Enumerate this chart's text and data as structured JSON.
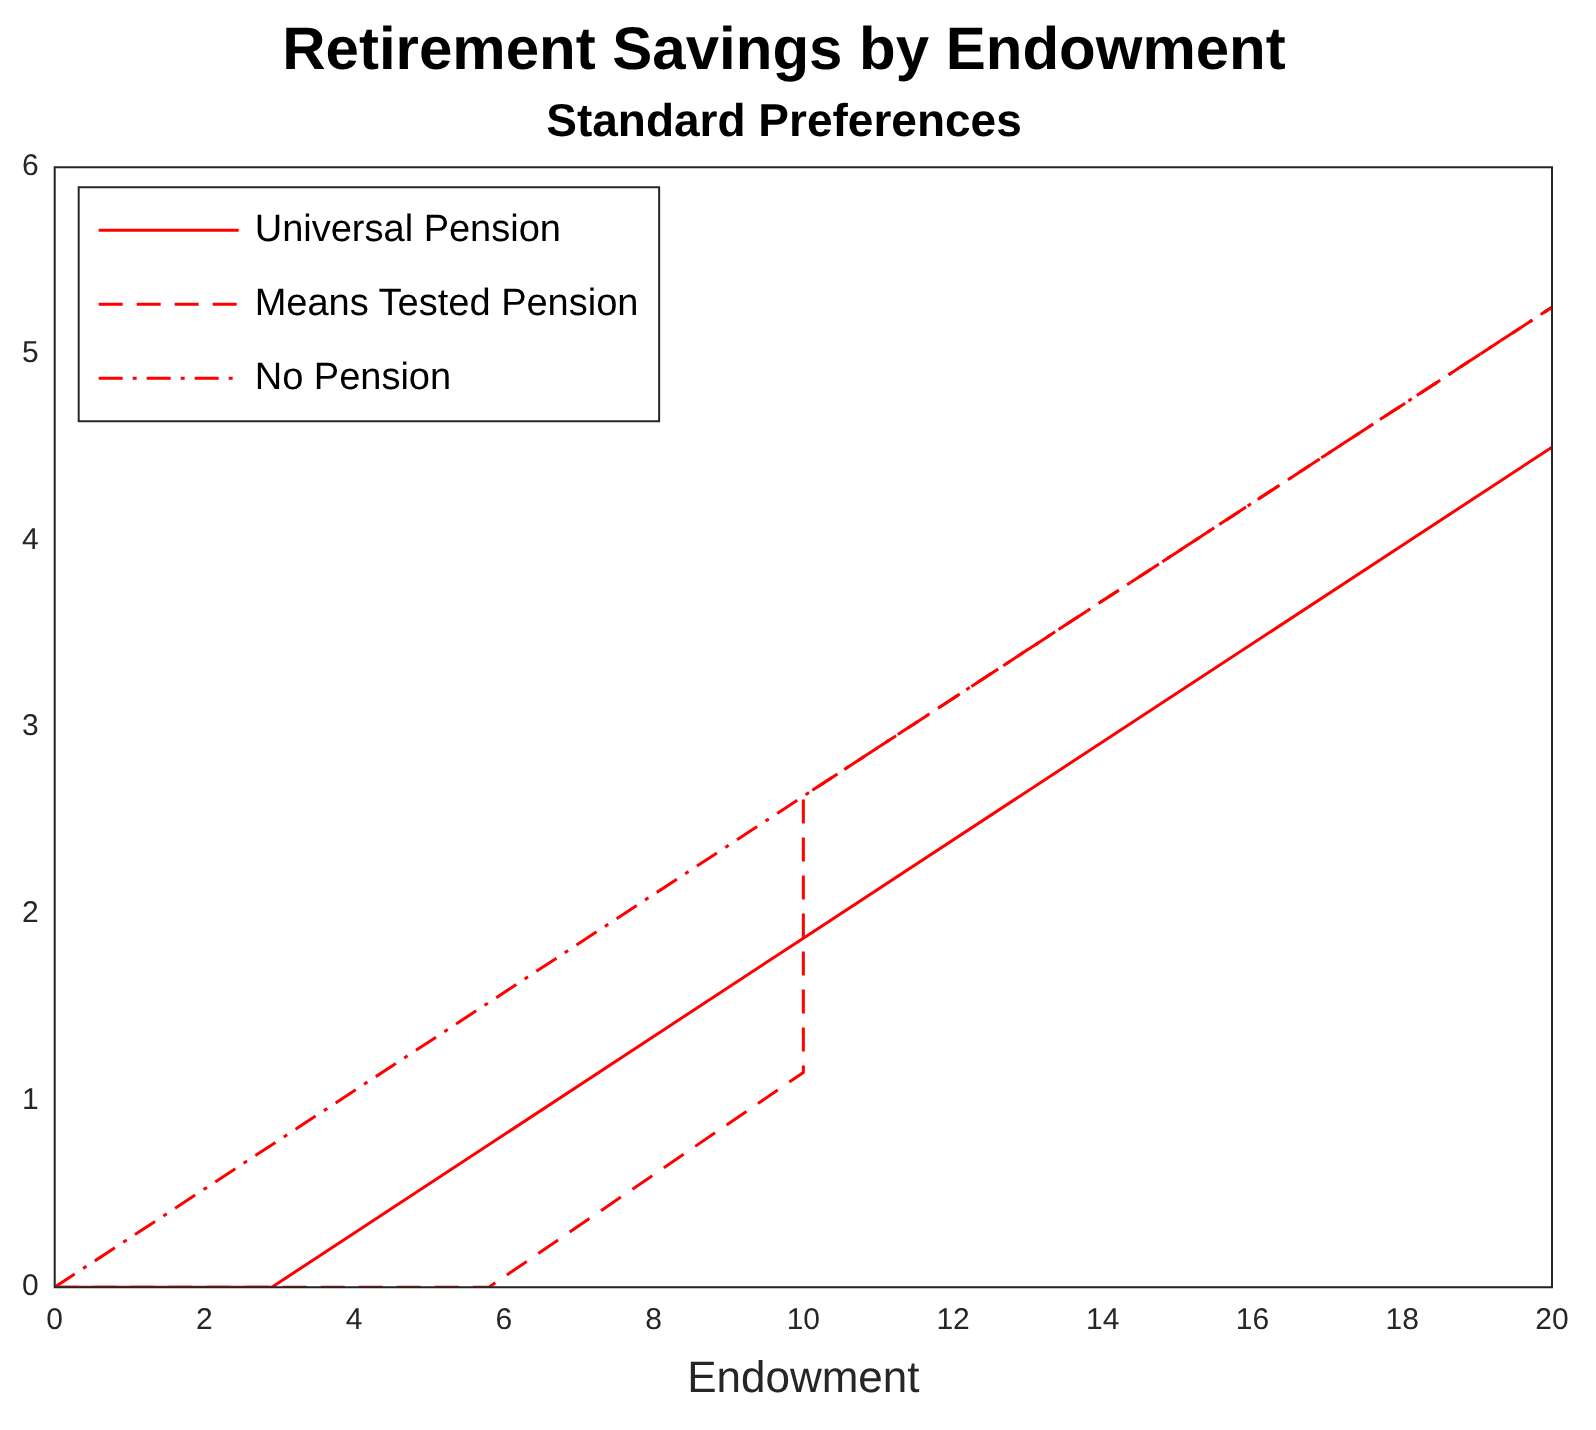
{
  "chart_data": {
    "type": "line",
    "title": "Retirement Savings by Endowment",
    "subtitle": "Standard Preferences",
    "xlabel": "Endowment",
    "xlim": [
      0,
      20
    ],
    "xticks": [
      0,
      2,
      4,
      6,
      8,
      10,
      12,
      14,
      16,
      18,
      20
    ],
    "ylim": [
      0,
      6
    ],
    "yticks": [
      0,
      1,
      2,
      3,
      4,
      5,
      6
    ],
    "grid": false,
    "legend": "top left",
    "marker": "none",
    "series": [
      {
        "name": "Universal Pension",
        "color": "#ff0000",
        "line_style": "solid",
        "x": [
          0,
          2.9,
          10,
          20
        ],
        "values": [
          0,
          0,
          1.87,
          4.5
        ]
      },
      {
        "name": "Means Tested Pension",
        "color": "#ff0000",
        "line_style": "dashed",
        "x": [
          0,
          5.8,
          10,
          10,
          20
        ],
        "values": [
          0,
          0,
          1.15,
          2.63,
          5.25
        ]
      },
      {
        "name": "No Pension",
        "color": "#ff0000",
        "line_style": "dashdot",
        "x": [
          0,
          10,
          20
        ],
        "values": [
          0,
          2.63,
          5.25
        ]
      }
    ]
  }
}
